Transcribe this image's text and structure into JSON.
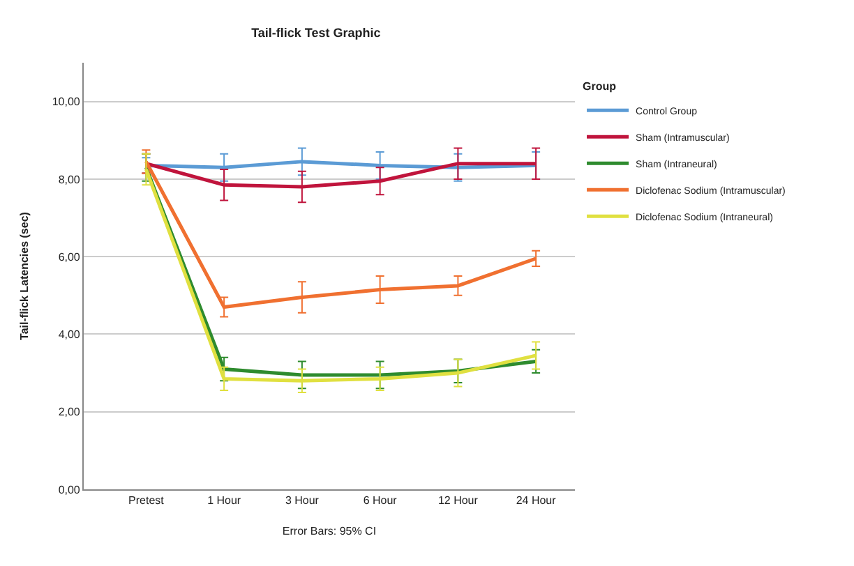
{
  "chart_data": {
    "type": "line",
    "title": "Tail-flick Test Graphic",
    "xlabel": "Error Bars: 95% CI",
    "ylabel": "Tail-flick Latencies (sec)",
    "legend_title": "Group",
    "categories": [
      "Pretest",
      "1 Hour",
      "3 Hour",
      "6 Hour",
      "12 Hour",
      "24 Hour"
    ],
    "series": [
      {
        "name": "Control Group",
        "color": "#5b9bd5",
        "values": [
          8.35,
          8.3,
          8.45,
          8.35,
          8.3,
          8.35
        ],
        "errors": [
          0.2,
          0.35,
          0.35,
          0.35,
          0.35,
          0.35
        ]
      },
      {
        "name": "Sham (Intramuscular)",
        "color": "#c0143c",
        "values": [
          8.4,
          7.85,
          7.8,
          7.95,
          8.4,
          8.4
        ],
        "errors": [
          0.25,
          0.4,
          0.4,
          0.35,
          0.4,
          0.4
        ]
      },
      {
        "name": "Sham (Intraneural)",
        "color": "#2e8b2e",
        "values": [
          8.3,
          3.1,
          2.95,
          2.95,
          3.05,
          3.3
        ],
        "errors": [
          0.35,
          0.3,
          0.35,
          0.35,
          0.3,
          0.3
        ]
      },
      {
        "name": "Diclofenac Sodium (Intramuscular)",
        "color": "#f07030",
        "values": [
          8.45,
          4.7,
          4.95,
          5.15,
          5.25,
          5.95
        ],
        "errors": [
          0.3,
          0.25,
          0.4,
          0.35,
          0.25,
          0.2
        ]
      },
      {
        "name": "Diclofenac Sodium (Intraneural)",
        "color": "#e0e040",
        "values": [
          8.25,
          2.85,
          2.8,
          2.85,
          3.0,
          3.45
        ],
        "errors": [
          0.4,
          0.3,
          0.3,
          0.3,
          0.35,
          0.35
        ]
      }
    ],
    "ylim": [
      0,
      11
    ],
    "yticks": [
      {
        "value": 0,
        "label": "0,00"
      },
      {
        "value": 2,
        "label": "2,00"
      },
      {
        "value": 4,
        "label": "4,00"
      },
      {
        "value": 6,
        "label": "6,00"
      },
      {
        "value": 8,
        "label": "8,00"
      },
      {
        "value": 10,
        "label": "10,00"
      }
    ],
    "grid": "y",
    "legend": "right",
    "marker": "none",
    "line_style": "solid"
  }
}
